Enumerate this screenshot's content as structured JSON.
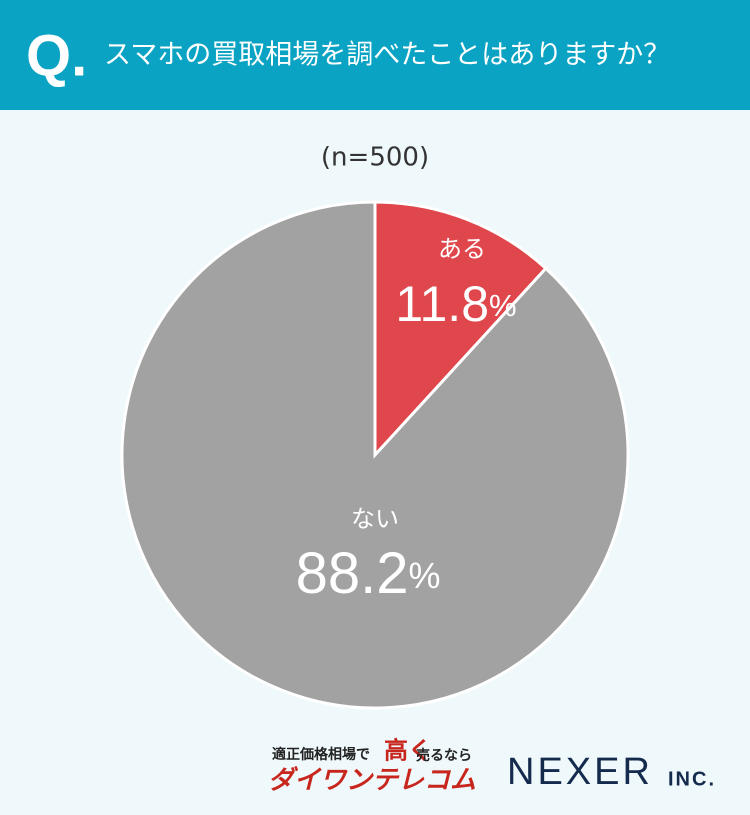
{
  "chart_data": {
    "type": "pie",
    "title_prefix": "Q.",
    "title": "スマホの買取相場を調べたことはありますか？",
    "subtitle": "(n=500)",
    "categories": [
      "ある",
      "ない"
    ],
    "values": [
      11.8,
      88.2
    ],
    "value_labels": [
      "11.8%",
      "88.2%"
    ],
    "colors": [
      "#df474c",
      "#a2a2a2"
    ],
    "logos": {
      "tagline_1": "適正価格相場で",
      "tagline_2": "高く",
      "tagline_3": "売るなら",
      "brand": "ダイワンテレコム",
      "company": "NEXER",
      "company_suffix": "INC."
    }
  }
}
